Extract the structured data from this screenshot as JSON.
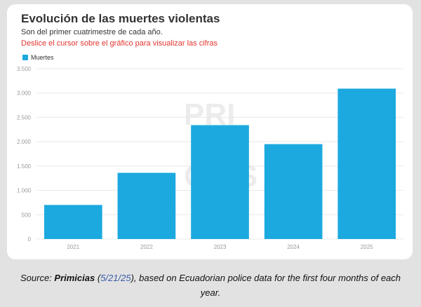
{
  "title": "Evolución de las muertes violentas",
  "subtitle": "Son del primer cuatrimestre de cada año.",
  "instruction": "Deslice el cursor sobre el gráfico para visualizar las cifras",
  "watermark": "PRIMICIAS",
  "caption": {
    "prefix": "Source: ",
    "source": "Primicias",
    "open_paren": " (",
    "date": "5/21/25",
    "rest_line1": "), based on Ecuadorian police data for the first four months of each",
    "rest_line2": "year."
  },
  "colors": {
    "bar": "#1ba9df",
    "grid": "#e8e8e8",
    "axis_text": "#999999"
  },
  "chart_data": {
    "type": "bar",
    "categories": [
      "2021",
      "2022",
      "2023",
      "2024",
      "2025"
    ],
    "series": [
      {
        "name": "Muertes",
        "values": [
          700,
          1360,
          2340,
          1950,
          3090
        ]
      }
    ],
    "ylim": [
      0,
      3500
    ],
    "yticks": [
      0,
      500,
      1000,
      1500,
      2000,
      2500,
      3000,
      3500
    ],
    "ytick_labels": [
      "0",
      "500",
      "1.000",
      "1.500",
      "2.000",
      "2.500",
      "3.000",
      "3.500"
    ],
    "grid": true,
    "legend": "top-left",
    "title": "Evolución de las muertes violentas",
    "xlabel": "",
    "ylabel": ""
  }
}
